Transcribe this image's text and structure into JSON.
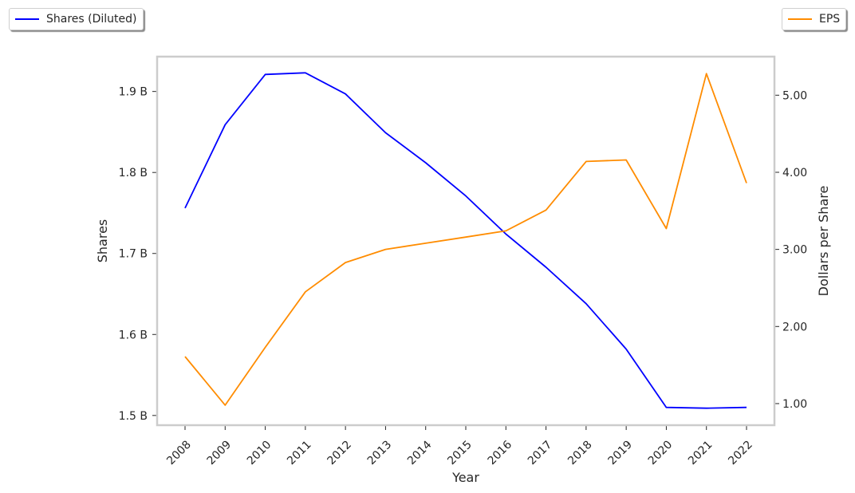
{
  "legend": {
    "left_label": "Shares (Diluted)",
    "right_label": "EPS"
  },
  "colors": {
    "shares": "#0000ff",
    "eps": "#ff8c00",
    "frame": "#cccccc"
  },
  "chart_data": {
    "type": "line",
    "x": [
      "2008",
      "2009",
      "2010",
      "2011",
      "2012",
      "2013",
      "2014",
      "2015",
      "2016",
      "2017",
      "2018",
      "2019",
      "2020",
      "2021",
      "2022"
    ],
    "xlabel": "Year",
    "ylabel_left": "Shares",
    "ylabel_right": "Dollars per Share",
    "ylim_left": [
      1.488,
      1.943
    ],
    "ylim_right": [
      0.72,
      5.5
    ],
    "yticks_left": [
      {
        "value": 1.5,
        "label": "1.5 B"
      },
      {
        "value": 1.6,
        "label": "1.6 B"
      },
      {
        "value": 1.7,
        "label": "1.7 B"
      },
      {
        "value": 1.8,
        "label": "1.8 B"
      },
      {
        "value": 1.9,
        "label": "1.9 B"
      }
    ],
    "yticks_right": [
      {
        "value": 1.0,
        "label": "1.00"
      },
      {
        "value": 2.0,
        "label": "2.00"
      },
      {
        "value": 3.0,
        "label": "3.00"
      },
      {
        "value": 4.0,
        "label": "4.00"
      },
      {
        "value": 5.0,
        "label": "5.00"
      }
    ],
    "grid": false,
    "series": [
      {
        "name": "Shares (Diluted)",
        "axis": "left",
        "values": [
          1.756,
          1.859,
          1.921,
          1.923,
          1.897,
          1.849,
          1.812,
          1.771,
          1.724,
          1.683,
          1.638,
          1.582,
          1.51,
          1.509,
          1.51
        ]
      },
      {
        "name": "EPS",
        "axis": "right",
        "values": [
          1.61,
          0.98,
          1.73,
          2.45,
          2.83,
          3.0,
          3.08,
          3.16,
          3.24,
          3.51,
          4.14,
          4.16,
          3.27,
          5.28,
          3.86
        ]
      }
    ]
  }
}
